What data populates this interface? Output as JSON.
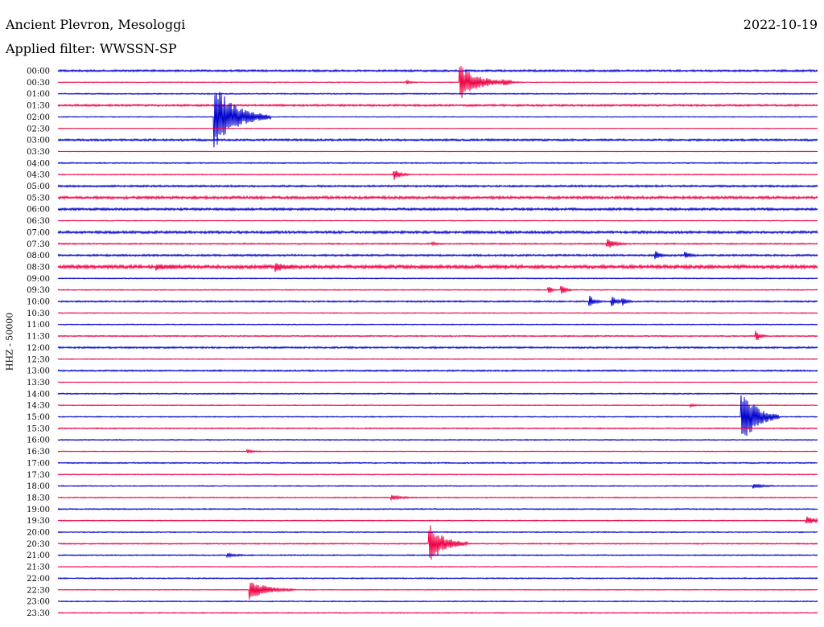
{
  "header": {
    "station": "Ancient Plevron, Mesologgi",
    "date": "2022-10-19",
    "filter": "Applied filter: WWSSN-SP"
  },
  "chart_data": {
    "type": "line",
    "title": "Ancient Plevron, Mesologgi",
    "ylabel": "HHZ - 50000",
    "colors": [
      "#0000cc",
      "#ee0044"
    ],
    "rows": [
      "00:00",
      "00:30",
      "01:00",
      "01:30",
      "02:00",
      "02:30",
      "03:00",
      "03:30",
      "04:00",
      "04:30",
      "05:00",
      "05:30",
      "06:00",
      "06:30",
      "07:00",
      "07:30",
      "08:00",
      "08:30",
      "09:00",
      "09:30",
      "10:00",
      "10:30",
      "11:00",
      "11:30",
      "12:00",
      "12:30",
      "13:00",
      "13:30",
      "14:00",
      "14:30",
      "15:00",
      "15:30",
      "16:00",
      "16:30",
      "17:00",
      "17:30",
      "18:00",
      "18:30",
      "19:00",
      "19:30",
      "20:00",
      "20:30",
      "21:00",
      "21:30",
      "22:00",
      "22:30",
      "23:00",
      "23:30"
    ],
    "x_range_minutes": [
      0,
      30
    ],
    "noise": [
      1.0,
      0.4,
      0.6,
      1.0,
      0.4,
      0.3,
      1.0,
      0.3,
      0.6,
      0.5,
      1.0,
      1.4,
      1.2,
      0.4,
      1.3,
      0.7,
      1.0,
      1.8,
      0.5,
      0.5,
      0.8,
      0.4,
      0.5,
      0.6,
      0.9,
      0.4,
      0.8,
      0.3,
      0.6,
      0.4,
      0.5,
      0.6,
      0.6,
      0.4,
      0.6,
      0.5,
      0.5,
      0.5,
      0.6,
      0.5,
      0.5,
      0.6,
      0.6,
      0.4,
      0.6,
      0.4,
      0.5,
      0.5
    ],
    "events": [
      {
        "row": "00:30",
        "minute": 15.9,
        "amplitude": 22,
        "duration": 2.0
      },
      {
        "row": "00:30",
        "minute": 17.6,
        "amplitude": 3,
        "duration": 0.8
      },
      {
        "row": "00:30",
        "minute": 13.8,
        "amplitude": 2,
        "duration": 0.4
      },
      {
        "row": "02:00",
        "minute": 6.2,
        "amplitude": 42,
        "duration": 2.2
      },
      {
        "row": "04:30",
        "minute": 13.3,
        "amplitude": 7,
        "duration": 0.6
      },
      {
        "row": "07:30",
        "minute": 21.7,
        "amplitude": 6,
        "duration": 0.8
      },
      {
        "row": "07:30",
        "minute": 14.8,
        "amplitude": 2,
        "duration": 0.4
      },
      {
        "row": "08:00",
        "minute": 23.6,
        "amplitude": 7,
        "duration": 0.4
      },
      {
        "row": "08:00",
        "minute": 24.8,
        "amplitude": 4,
        "duration": 0.4
      },
      {
        "row": "08:30",
        "minute": 3.9,
        "amplitude": 3,
        "duration": 1.2
      },
      {
        "row": "08:30",
        "minute": 8.6,
        "amplitude": 5,
        "duration": 0.8
      },
      {
        "row": "09:30",
        "minute": 19.4,
        "amplitude": 5,
        "duration": 0.3
      },
      {
        "row": "09:30",
        "minute": 19.9,
        "amplitude": 8,
        "duration": 0.4
      },
      {
        "row": "10:00",
        "minute": 21.0,
        "amplitude": 7,
        "duration": 0.5
      },
      {
        "row": "10:00",
        "minute": 21.9,
        "amplitude": 6,
        "duration": 0.4
      },
      {
        "row": "10:00",
        "minute": 22.3,
        "amplitude": 5,
        "duration": 0.4
      },
      {
        "row": "11:30",
        "minute": 27.6,
        "amplitude": 6,
        "duration": 0.4
      },
      {
        "row": "14:30",
        "minute": 25.0,
        "amplitude": 2,
        "duration": 0.4
      },
      {
        "row": "15:00",
        "minute": 27.0,
        "amplitude": 40,
        "duration": 1.5
      },
      {
        "row": "18:00",
        "minute": 27.5,
        "amplitude": 3,
        "duration": 0.8
      },
      {
        "row": "18:30",
        "minute": 13.2,
        "amplitude": 3,
        "duration": 1.0
      },
      {
        "row": "19:30",
        "minute": 29.6,
        "amplitude": 5,
        "duration": 1.0
      },
      {
        "row": "20:30",
        "minute": 14.7,
        "amplitude": 25,
        "duration": 1.5
      },
      {
        "row": "21:00",
        "minute": 6.7,
        "amplitude": 2,
        "duration": 1.0
      },
      {
        "row": "22:30",
        "minute": 7.6,
        "amplitude": 12,
        "duration": 1.8
      },
      {
        "row": "16:30",
        "minute": 7.5,
        "amplitude": 2,
        "duration": 0.6
      }
    ]
  }
}
